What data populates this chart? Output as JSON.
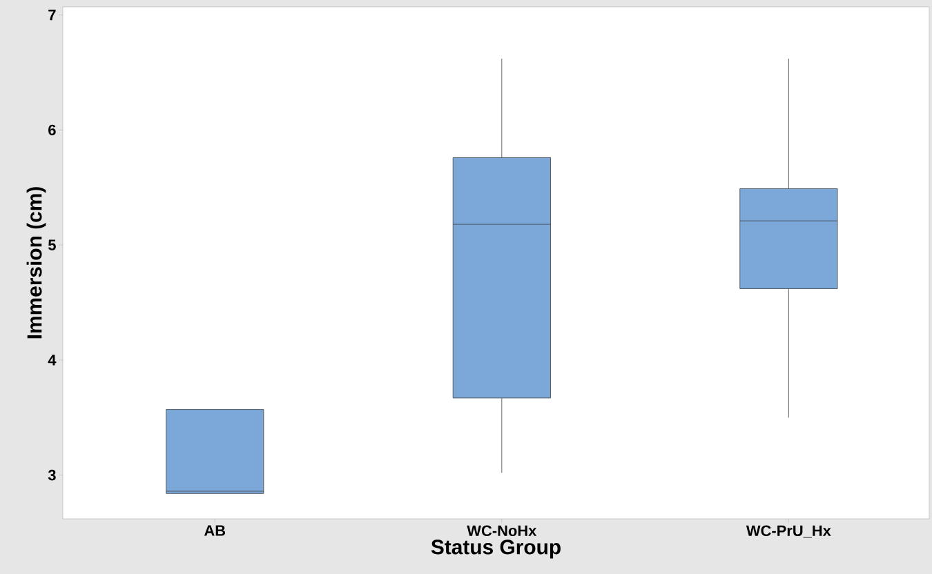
{
  "chart_data": {
    "type": "box",
    "xlabel": "Status Group",
    "ylabel": "Immersion (cm)",
    "categories": [
      "AB",
      "WC-NoHx",
      "WC-PrU_Hx"
    ],
    "boxes": [
      {
        "low": 2.84,
        "q1": 2.84,
        "median": 2.86,
        "q3": 3.57,
        "high": 3.57
      },
      {
        "low": 3.02,
        "q1": 3.67,
        "median": 5.18,
        "q3": 5.76,
        "high": 6.62
      },
      {
        "low": 3.5,
        "q1": 4.62,
        "median": 5.21,
        "q3": 5.49,
        "high": 6.62
      }
    ],
    "color": "#7ba7d9",
    "ylim": [
      2.62,
      7.07
    ],
    "yticks": [
      3,
      4,
      5,
      6,
      7
    ]
  }
}
